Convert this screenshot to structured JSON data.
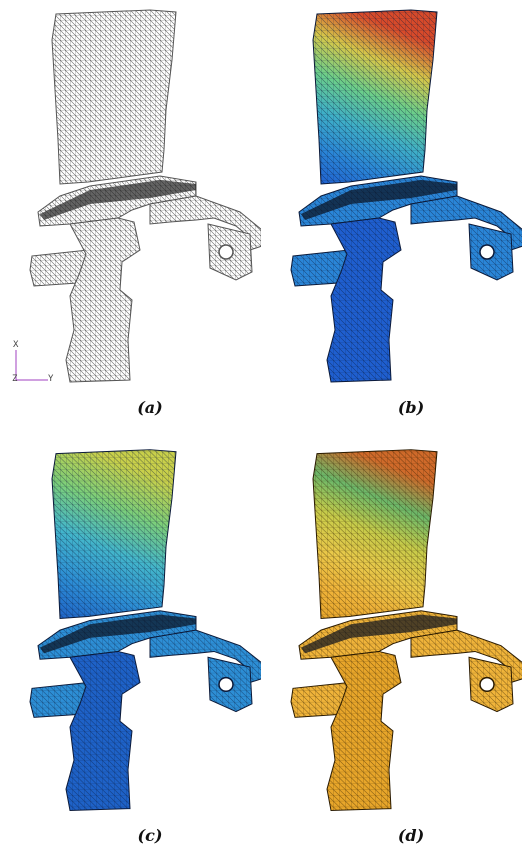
{
  "panels": [
    {
      "id": "a",
      "caption": "(a)",
      "style": "wireframe",
      "mesh_color": "#555555",
      "fill_colors": [
        "#ffffff",
        "#ffffff"
      ]
    },
    {
      "id": "b",
      "caption": "(b)",
      "style": "contour",
      "mesh_color": "#0b1a3a",
      "fill_colors": [
        "#1f5fd0",
        "#2a86d8",
        "#3fb0c8",
        "#6ccf8a",
        "#d6c84a",
        "#d84a2a"
      ]
    },
    {
      "id": "c",
      "caption": "(c)",
      "style": "contour",
      "mesh_color": "#0b1a3a",
      "fill_colors": [
        "#1e62c8",
        "#2d8fd6",
        "#43b6cc",
        "#7ccf7a",
        "#c9d04a"
      ]
    },
    {
      "id": "d",
      "caption": "(d)",
      "style": "contour",
      "mesh_color": "#2a1a00",
      "fill_colors": [
        "#e8a62a",
        "#f0b43a",
        "#e9c94a",
        "#c8cc4a",
        "#6bb86a",
        "#d06a2a"
      ]
    }
  ],
  "axis_triad": {
    "x_label": "X",
    "y_label": "Y",
    "z_label": "Z",
    "color": "#a040c0"
  }
}
